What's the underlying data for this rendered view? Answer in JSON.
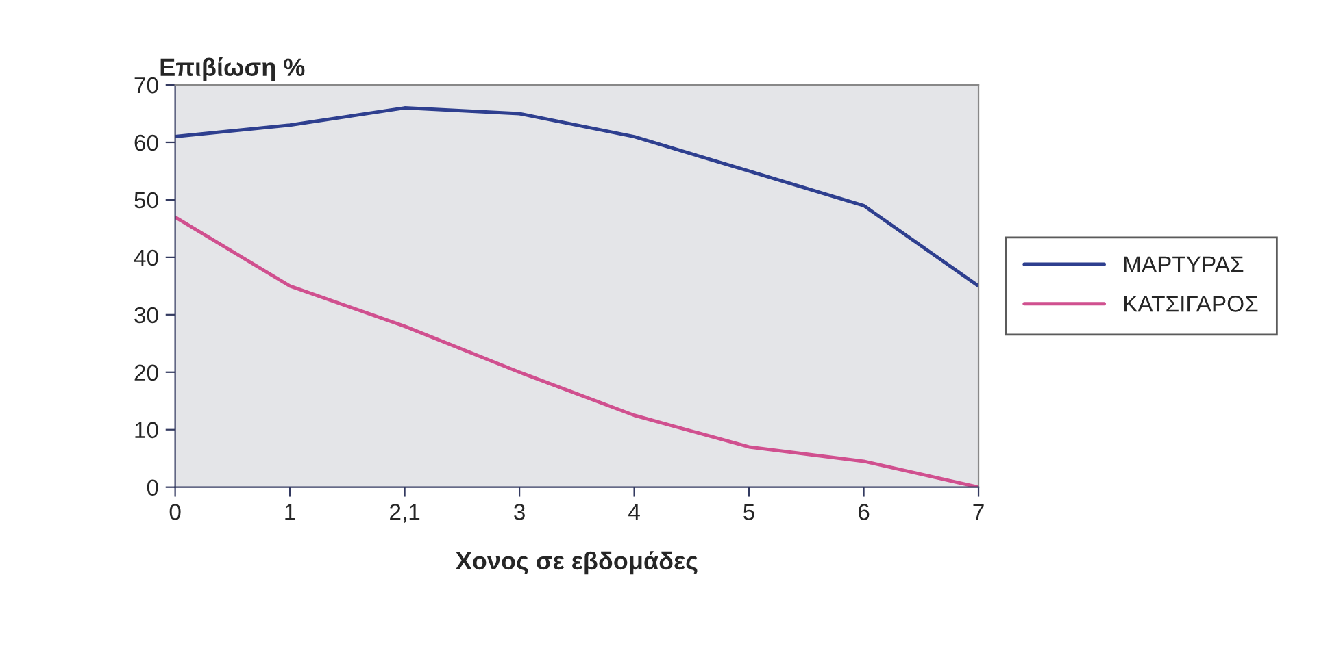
{
  "chart_data": {
    "type": "line",
    "ylabel": "Επιβίωση %",
    "xlabel": "Χονος σε εβδομάδες",
    "categories": [
      "0",
      "1",
      "2,1",
      "3",
      "4",
      "5",
      "6",
      "7"
    ],
    "series": [
      {
        "name": "ΜΑΡΤΥΡΑΣ",
        "color": "#2e3f8f",
        "values": [
          61,
          63,
          66,
          65,
          61,
          55,
          49,
          35
        ]
      },
      {
        "name": "ΚΑΤΣΙΓΑΡΟΣ",
        "color": "#d0508f",
        "values": [
          47,
          35,
          28,
          20,
          12.5,
          7,
          4.5,
          0
        ]
      }
    ],
    "ylim": [
      0,
      70
    ],
    "yticks": [
      0,
      10,
      20,
      30,
      40,
      50,
      60,
      70
    ],
    "grid": false,
    "legend": "right",
    "marker": "none",
    "line_style": "solid"
  }
}
